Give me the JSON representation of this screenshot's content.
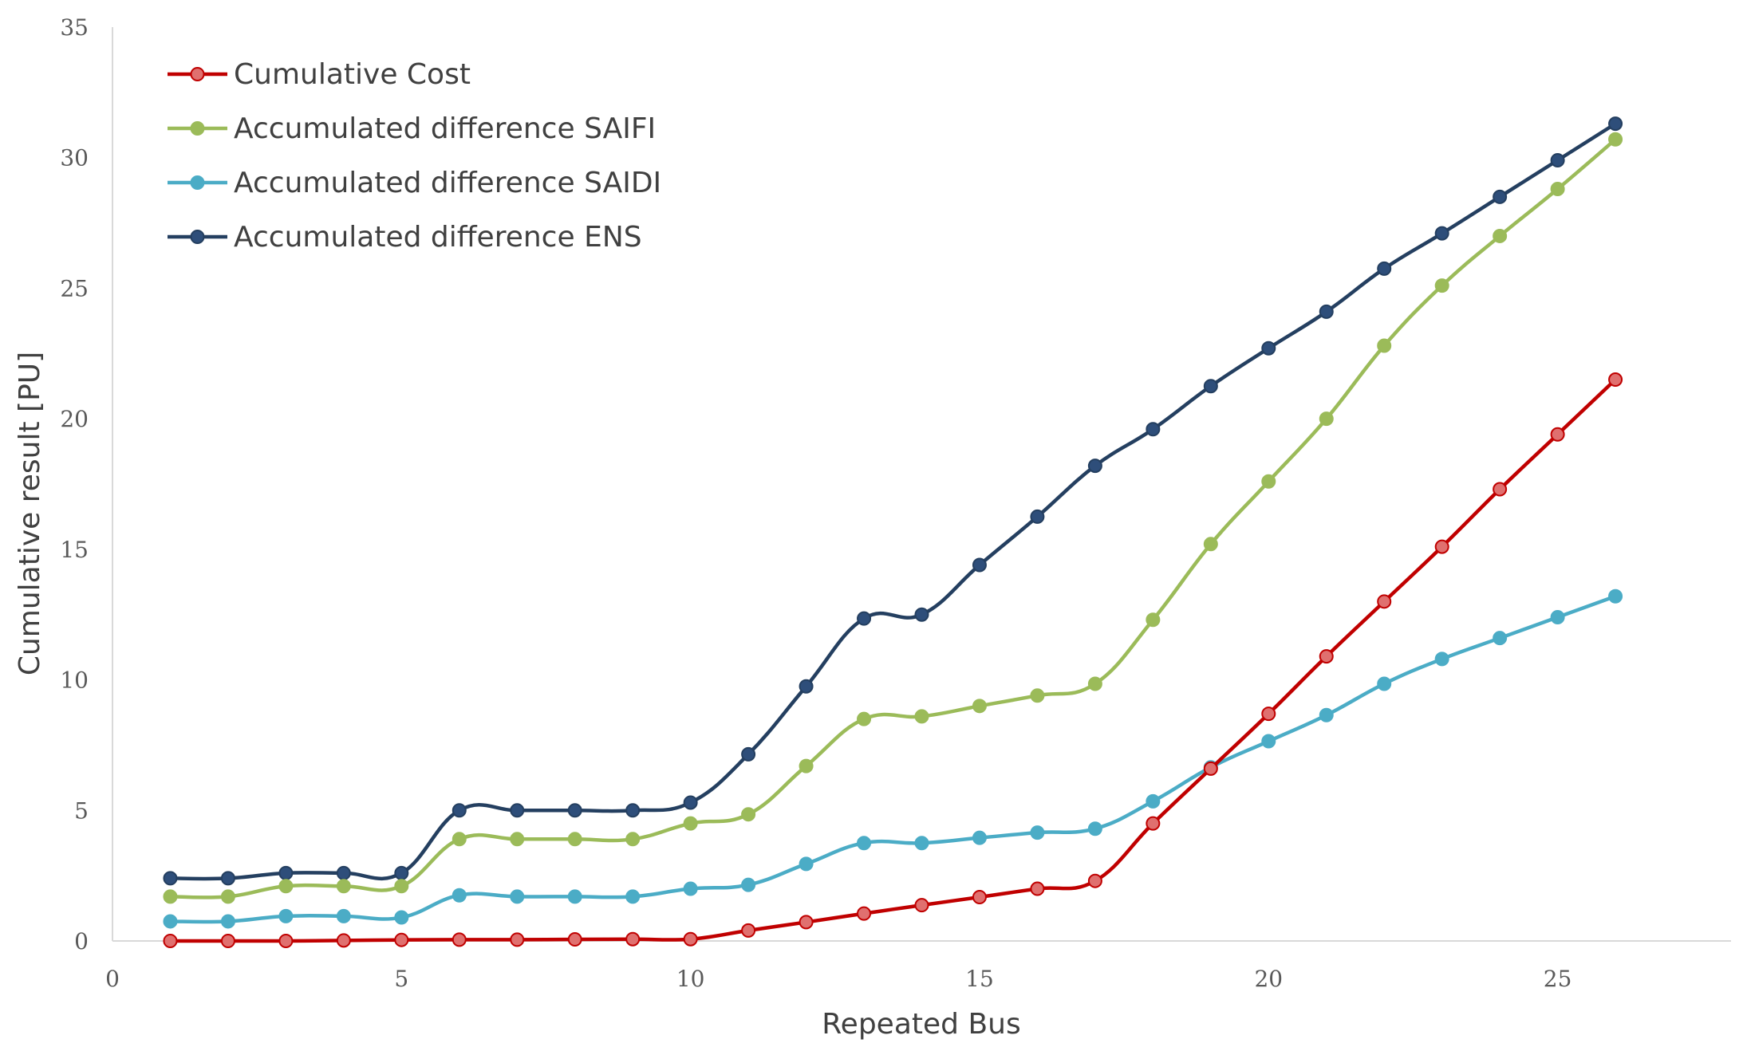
{
  "chart_data": {
    "type": "line",
    "title": "",
    "xlabel": "Repeated Bus",
    "ylabel": "Cumulative result [PU]",
    "xlim": [
      0,
      28
    ],
    "ylim": [
      0,
      35
    ],
    "x_ticks": [
      "0",
      "5",
      "10",
      "15",
      "20",
      "25"
    ],
    "y_ticks": [
      "0",
      "5",
      "10",
      "15",
      "20",
      "25",
      "30",
      "35"
    ],
    "grid": false,
    "legend_position": "top-left",
    "x": [
      1,
      2,
      3,
      4,
      5,
      6,
      7,
      8,
      9,
      10,
      11,
      12,
      13,
      14,
      15,
      16,
      17,
      18,
      19,
      20,
      21,
      22,
      23,
      24,
      25,
      26
    ],
    "series": [
      {
        "name": "Cumulative Cost",
        "color": "#C00000",
        "marker_fill": "#E0706F",
        "values": [
          0.0,
          0.0,
          0.0,
          0.02,
          0.04,
          0.05,
          0.05,
          0.06,
          0.07,
          0.07,
          0.4,
          0.72,
          1.05,
          1.37,
          1.68,
          2.0,
          2.3,
          4.5,
          6.6,
          8.7,
          10.9,
          13.0,
          15.1,
          17.3,
          19.4,
          21.5
        ]
      },
      {
        "name": "Accumulated difference SAIFI",
        "color": "#9BBB59",
        "marker_fill": "#9BBB59",
        "values": [
          1.7,
          1.7,
          2.1,
          2.1,
          2.1,
          3.9,
          3.9,
          3.9,
          3.9,
          4.5,
          4.85,
          6.7,
          8.5,
          8.6,
          9.0,
          9.4,
          9.85,
          12.3,
          15.2,
          17.6,
          20.0,
          22.8,
          25.1,
          27.0,
          28.8,
          30.7
        ]
      },
      {
        "name": "Accumulated difference SAIDI",
        "color": "#4BACC6",
        "marker_fill": "#4BACC6",
        "values": [
          0.75,
          0.75,
          0.95,
          0.95,
          0.9,
          1.75,
          1.7,
          1.7,
          1.7,
          2.0,
          2.15,
          2.95,
          3.75,
          3.75,
          3.95,
          4.15,
          4.3,
          5.35,
          6.65,
          7.65,
          8.65,
          9.85,
          10.8,
          11.6,
          12.4,
          13.2
        ]
      },
      {
        "name": "Accumulated difference ENS",
        "color": "#243F60",
        "marker_fill": "#2E4E7A",
        "values": [
          2.4,
          2.4,
          2.6,
          2.6,
          2.6,
          5.0,
          5.0,
          5.0,
          5.0,
          5.3,
          7.15,
          9.75,
          12.35,
          12.5,
          14.4,
          16.25,
          18.2,
          19.6,
          21.25,
          22.7,
          24.1,
          25.75,
          27.1,
          28.5,
          29.9,
          31.3
        ]
      }
    ]
  }
}
